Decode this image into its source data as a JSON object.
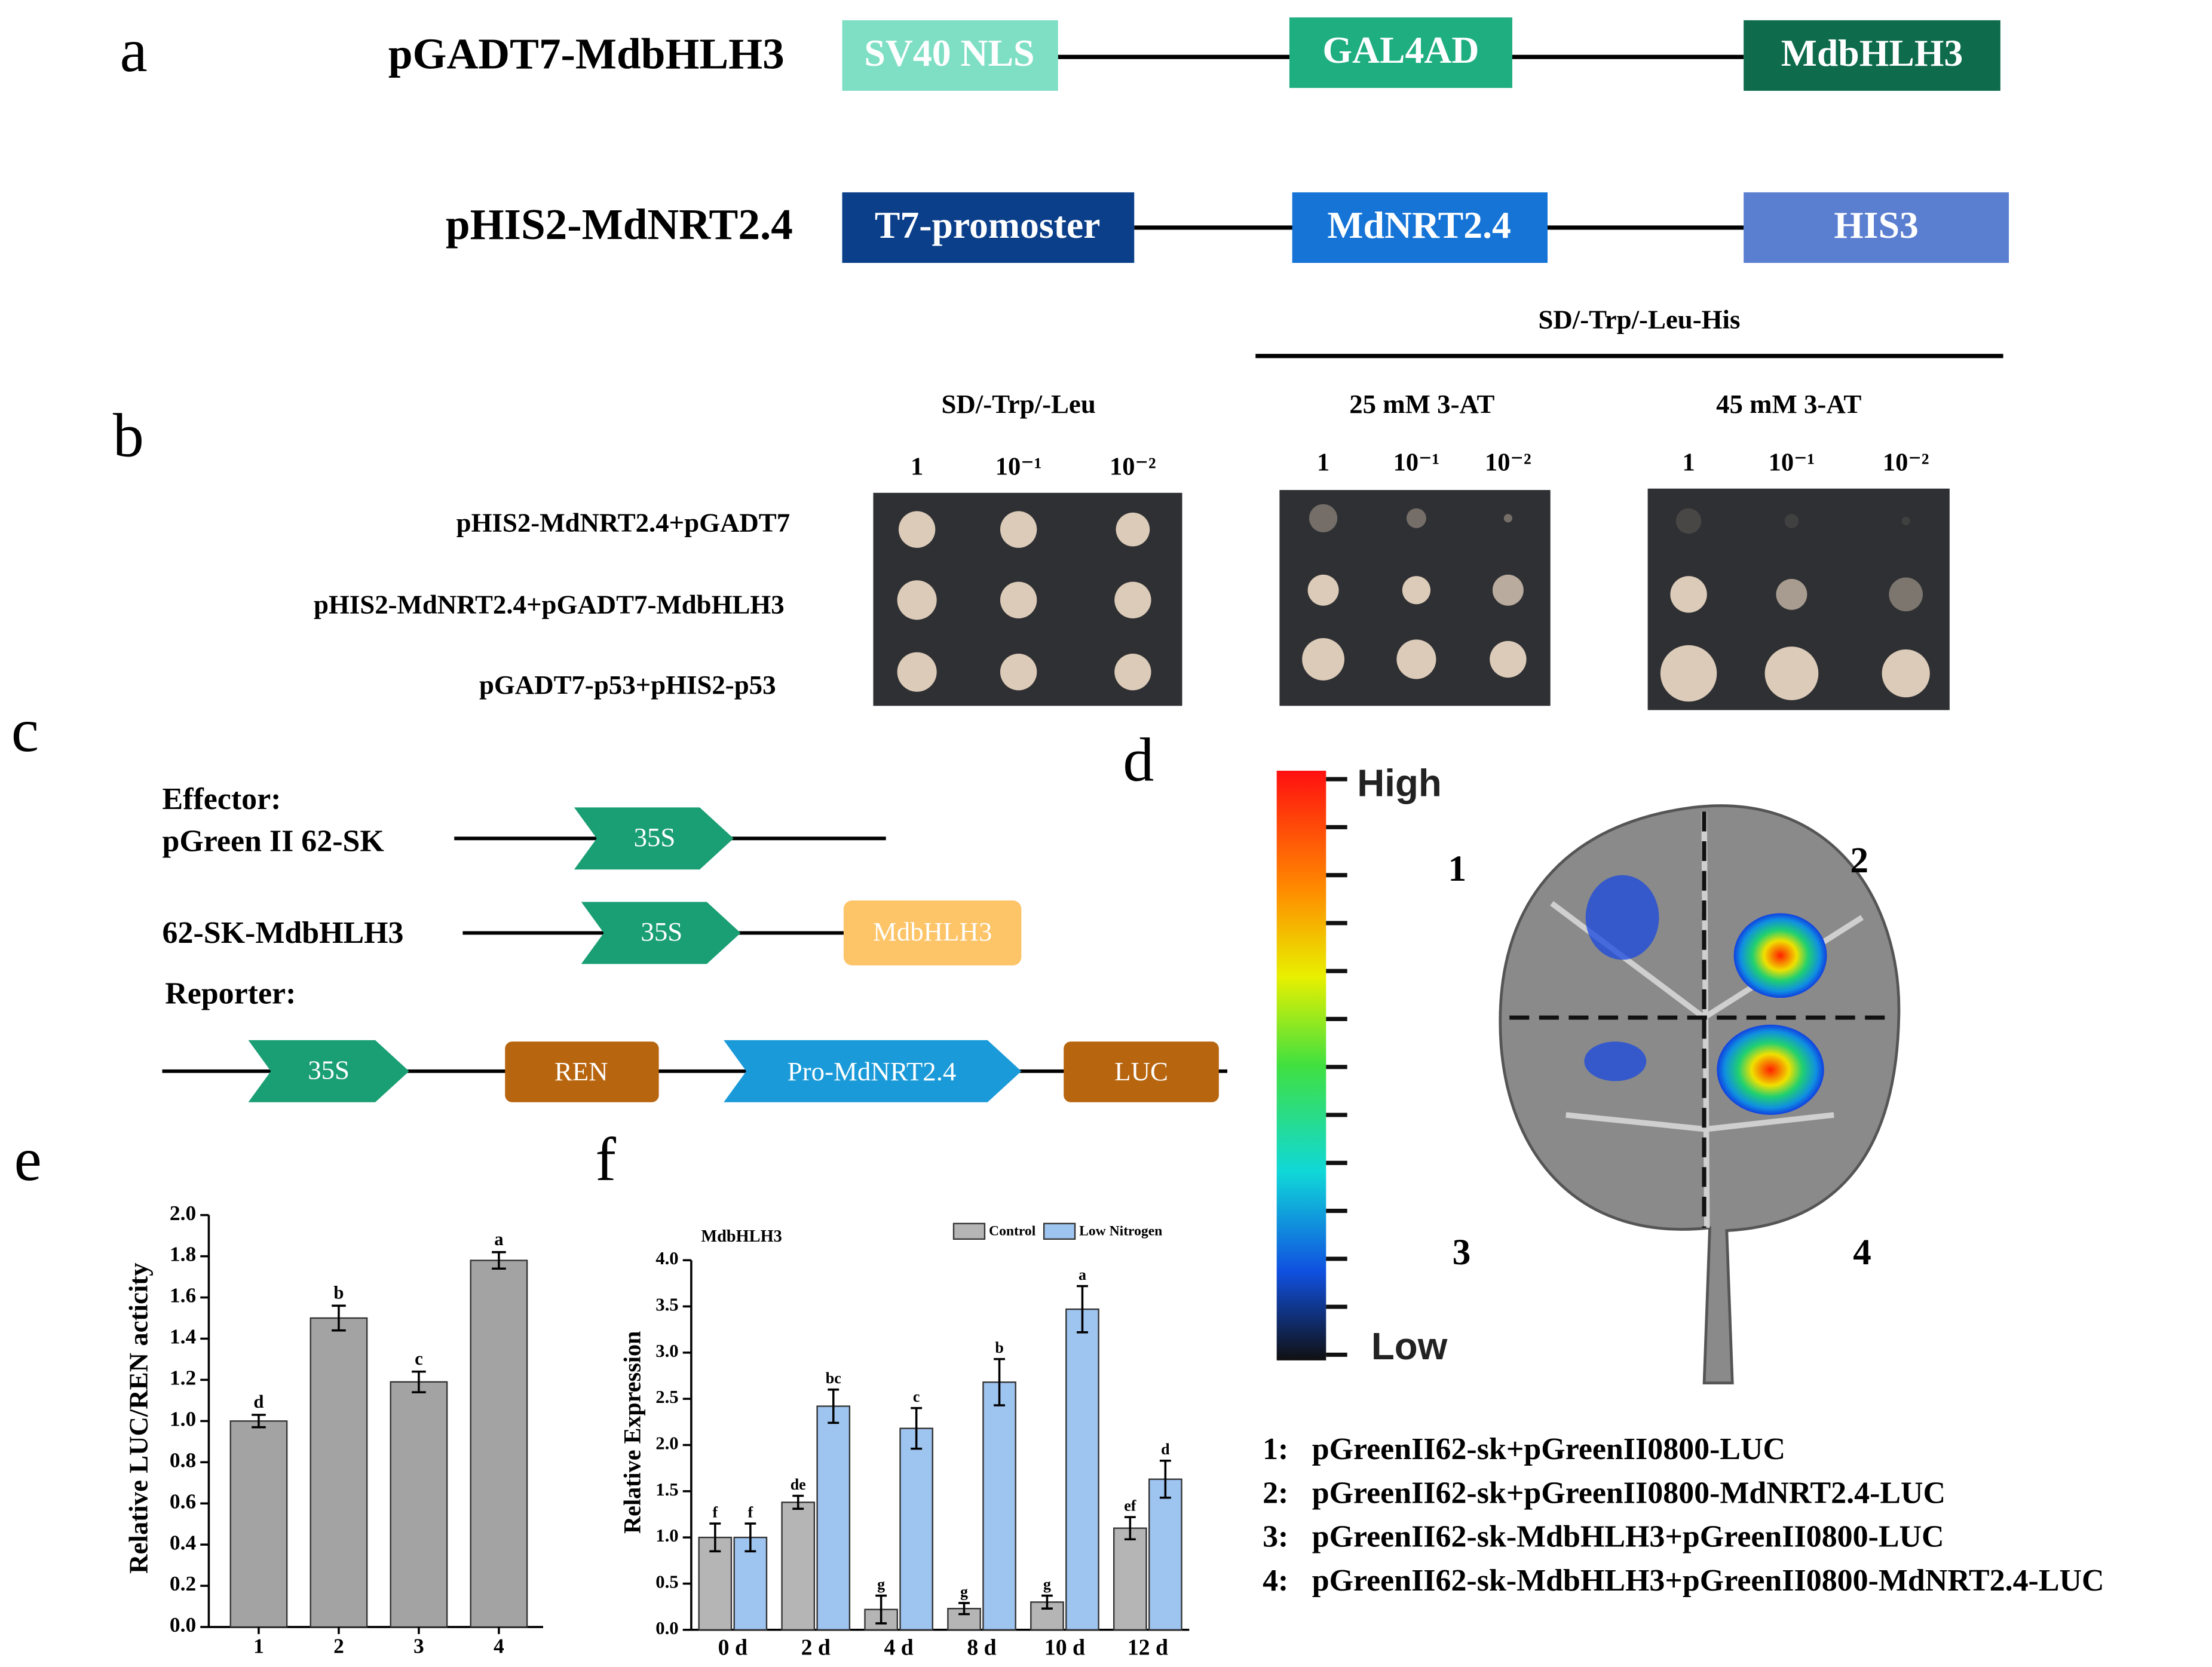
{
  "panel_labels": [
    "a",
    "b",
    "c",
    "d",
    "e",
    "f"
  ],
  "panel_a": {
    "constructs": [
      {
        "name": "pGADT7-MdbHLH3",
        "parts": [
          "SV40 NLS",
          "GAL4AD",
          "MdbHLH3"
        ]
      },
      {
        "name": "pHIS2-MdNRT2.4",
        "parts": [
          "T7-promoster",
          "MdNRT2.4",
          "HIS3"
        ]
      }
    ]
  },
  "panel_b": {
    "group_header": "SD/-Trp/-Leu-His",
    "media": [
      "SD/-Trp/-Leu",
      "25 mM 3-AT",
      "45 mM 3-AT"
    ],
    "dilutions": [
      "1",
      "10⁻¹",
      "10⁻²"
    ],
    "rows": [
      "pHIS2-MdNRT2.4+pGADT7",
      "pHIS2-MdNRT2.4+pGADT7-MdbHLH3",
      "pGADT7-p53+pHIS2-p53"
    ]
  },
  "panel_c": {
    "effector_heading": "Effector:",
    "reporter_heading": "Reporter:",
    "constructs": [
      "pGreen II 62-SK",
      "62-SK-MdbHLH3"
    ],
    "elements": [
      "35S",
      "35S",
      "MdbHLH3",
      "35S",
      "REN",
      "Pro-MdNRT2.4",
      "LUC"
    ]
  },
  "panel_d": {
    "scale_high": "High",
    "scale_low": "Low",
    "quadrants": [
      "1",
      "2",
      "3",
      "4"
    ],
    "legend": [
      {
        "number": "1:",
        "text": "pGreenII62-sk+pGreenII0800-LUC"
      },
      {
        "number": "2:",
        "text": "pGreenII62-sk+pGreenII0800-MdNRT2.4-LUC"
      },
      {
        "number": "3:",
        "text": "pGreenII62-sk-MdbHLH3+pGreenII0800-LUC"
      },
      {
        "number": "4:",
        "text": "pGreenII62-sk-MdbHLH3+pGreenII0800-MdNRT2.4-LUC"
      }
    ]
  },
  "chart_data": [
    {
      "type": "bar",
      "ylabel": "Relative LUC/REN acticity",
      "categories": [
        "1",
        "2",
        "3",
        "4"
      ],
      "values": [
        1.0,
        1.5,
        1.19,
        1.78
      ],
      "errors": [
        0.03,
        0.06,
        0.05,
        0.04
      ],
      "letters": [
        "d",
        "b",
        "c",
        "a"
      ],
      "color": "#a3a3a3",
      "ylim": [
        0,
        2.0
      ],
      "yticks": [
        {
          "value": 0,
          "label": "0.0"
        },
        {
          "value": 0.2,
          "label": "0.2"
        },
        {
          "value": 0.4,
          "label": "0.4"
        },
        {
          "value": 0.6,
          "label": "0.6"
        },
        {
          "value": 0.8,
          "label": "0.8"
        },
        {
          "value": 1.0,
          "label": "1.0"
        },
        {
          "value": 1.2,
          "label": "1.2"
        },
        {
          "value": 1.4,
          "label": "1.4"
        },
        {
          "value": 1.6,
          "label": "1.6"
        },
        {
          "value": 1.8,
          "label": "1.8"
        },
        {
          "value": 2.0,
          "label": "2.0"
        }
      ]
    },
    {
      "type": "grouped_bar",
      "title": "MdbHLH3",
      "ylabel": "Relative Expression",
      "categories": [
        "0 d",
        "2 d",
        "4 d",
        "8 d",
        "10 d",
        "12 d"
      ],
      "legend": "top-right",
      "series": [
        {
          "name": "Control",
          "color": "#b5b5b5",
          "values": [
            1.0,
            1.38,
            0.22,
            0.23,
            0.3,
            1.1
          ],
          "errors": [
            0.15,
            0.07,
            0.15,
            0.06,
            0.07,
            0.12
          ],
          "letters": [
            "f",
            "de",
            "g",
            "g",
            "g",
            "ef"
          ]
        },
        {
          "name": "Low Nitrogen",
          "color": "#9ec4f0",
          "values": [
            1.0,
            2.42,
            2.18,
            2.68,
            3.47,
            1.63
          ],
          "errors": [
            0.15,
            0.18,
            0.22,
            0.25,
            0.25,
            0.2
          ],
          "letters": [
            "f",
            "bc",
            "c",
            "b",
            "a",
            "d"
          ]
        }
      ],
      "ylim": [
        0,
        4.0
      ],
      "yticks": [
        {
          "value": 0,
          "label": "0.0"
        },
        {
          "value": 0.5,
          "label": "0.5"
        },
        {
          "value": 1.0,
          "label": "1.0"
        },
        {
          "value": 1.5,
          "label": "1.5"
        },
        {
          "value": 2.0,
          "label": "2.0"
        },
        {
          "value": 2.5,
          "label": "2.5"
        },
        {
          "value": 3.0,
          "label": "3.0"
        },
        {
          "value": 3.5,
          "label": "3.5"
        },
        {
          "value": 4.0,
          "label": "4.0"
        }
      ]
    }
  ]
}
